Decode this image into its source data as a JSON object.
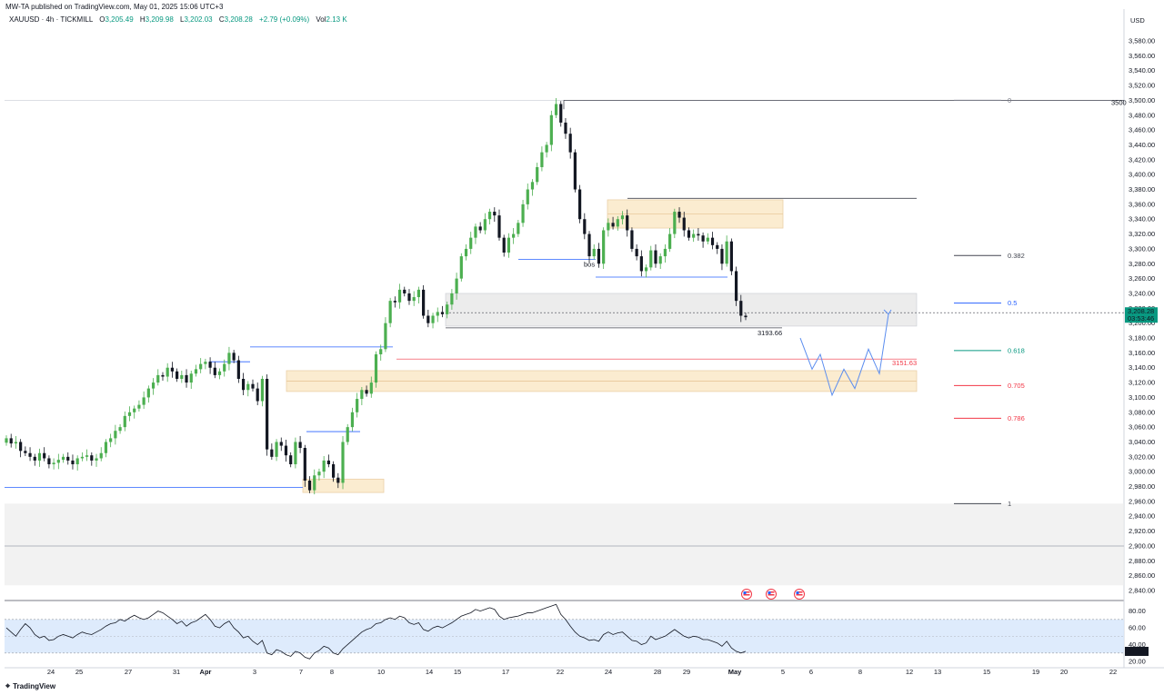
{
  "header": {
    "published": "MW-TA published on TradingView.com, May 01, 2025 15:06 UTC+3",
    "symbol": "XAUUSD · 4h · TICKMILL",
    "o_label": "O",
    "o_value": "3,205.49",
    "h_label": "H",
    "h_value": "3,209.98",
    "l_label": "L",
    "l_value": "3,202.03",
    "c_label": "C",
    "c_value": "3,208.28",
    "change": "+2.79 (+0.09%)",
    "vol_label": "Vol",
    "vol_value": "2.13 K"
  },
  "price_axis": {
    "currency": "USD",
    "current_price": "3,208.28",
    "countdown": "03:53:46",
    "edge_label": "3500"
  },
  "rsi_axis": {
    "ticks": [
      "80.00",
      "60.00",
      "40.00",
      "20.00"
    ],
    "current": "31.94"
  },
  "brand": {
    "name": "TradingView"
  },
  "colors": {
    "bull": "#4caf50",
    "bear": "#131722",
    "accent": "#2962ff",
    "zone": "#fbe9c8",
    "zone_border": "#e8c89a",
    "grey_zone": "#ececec",
    "price_tag": "#089981",
    "rsi_band": "#d6e6fb",
    "rsi_line": "#131722"
  },
  "annotations": {
    "bos": "bos",
    "low_label": "3193.66",
    "red_label": "3151.63",
    "projection": "bullish zigzag from ~3,210 down toward 3,105 then up"
  },
  "event_icons": [
    "us-flag-icon",
    "us-flag-icon",
    "us-flag-icon"
  ],
  "chart_data": {
    "type": "candlestick",
    "title": "XAUUSD · 4h · TICKMILL",
    "y_axis": {
      "ticks": [
        "3,580.00",
        "3,560.00",
        "3,540.00",
        "3,520.00",
        "3,500.00",
        "3,480.00",
        "3,460.00",
        "3,440.00",
        "3,420.00",
        "3,400.00",
        "3,380.00",
        "3,360.00",
        "3,340.00",
        "3,320.00",
        "3,300.00",
        "3,280.00",
        "3,260.00",
        "3,240.00",
        "3,220.00",
        "3,200.00",
        "3,180.00",
        "3,160.00",
        "3,140.00",
        "3,120.00",
        "3,100.00",
        "3,080.00",
        "3,060.00",
        "3,040.00",
        "3,020.00",
        "3,000.00",
        "2,980.00",
        "2,960.00",
        "2,940.00",
        "2,920.00",
        "2,900.00",
        "2,880.00",
        "2,860.00",
        "2,840.00"
      ],
      "range": [
        2840,
        3580
      ]
    },
    "x_axis": {
      "ticks": [
        "24",
        "25",
        "27",
        "31",
        "Apr",
        "3",
        "7",
        "8",
        "10",
        "14",
        "15",
        "17",
        "22",
        "24",
        "28",
        "29",
        "May",
        "5",
        "6",
        "8",
        "12",
        "13",
        "15",
        "19",
        "20",
        "22"
      ]
    },
    "closes": [
      3045,
      3038,
      3040,
      3028,
      3025,
      3020,
      3015,
      3025,
      3018,
      3010,
      3012,
      3016,
      3020,
      3015,
      3010,
      3018,
      3020,
      3022,
      3015,
      3018,
      3025,
      3040,
      3045,
      3055,
      3060,
      3075,
      3080,
      3085,
      3090,
      3100,
      3112,
      3120,
      3130,
      3128,
      3140,
      3135,
      3125,
      3130,
      3120,
      3132,
      3138,
      3145,
      3148,
      3140,
      3130,
      3135,
      3145,
      3160,
      3150,
      3125,
      3110,
      3118,
      3112,
      3095,
      3125,
      3030,
      3020,
      3040,
      3035,
      3022,
      3010,
      3040,
      3032,
      2988,
      2975,
      2995,
      3000,
      3015,
      3010,
      2992,
      2985,
      3040,
      3060,
      3080,
      3098,
      3110,
      3105,
      3120,
      3158,
      3165,
      3200,
      3230,
      3228,
      3245,
      3240,
      3230,
      3235,
      3245,
      3210,
      3200,
      3210,
      3215,
      3212,
      3225,
      3240,
      3260,
      3290,
      3300,
      3315,
      3330,
      3325,
      3340,
      3350,
      3345,
      3315,
      3295,
      3315,
      3320,
      3335,
      3360,
      3380,
      3390,
      3410,
      3430,
      3440,
      3480,
      3495,
      3470,
      3455,
      3430,
      3380,
      3340,
      3320,
      3290,
      3300,
      3280,
      3325,
      3335,
      3330,
      3340,
      3345,
      3325,
      3300,
      3290,
      3270,
      3275,
      3298,
      3280,
      3290,
      3300,
      3320,
      3350,
      3342,
      3325,
      3315,
      3320,
      3318,
      3310,
      3315,
      3305,
      3300,
      3280,
      3310,
      3270,
      3230,
      3210,
      3208
    ],
    "fib_levels": [
      {
        "label": "0",
        "value": 3500
      },
      {
        "label": "0.382",
        "value": 3291
      },
      {
        "label": "0.5",
        "value": 3227
      },
      {
        "label": "0.618",
        "value": 3163
      },
      {
        "label": "0.705",
        "value": 3116
      },
      {
        "label": "0.786",
        "value": 3072
      },
      {
        "label": "1",
        "value": 2957
      }
    ],
    "rsi": [
      60,
      55,
      50,
      58,
      65,
      60,
      52,
      48,
      50,
      45,
      46,
      50,
      52,
      50,
      48,
      52,
      55,
      53,
      52,
      55,
      58,
      62,
      65,
      66,
      70,
      68,
      72,
      75,
      72,
      70,
      72,
      76,
      80,
      78,
      74,
      70,
      65,
      68,
      62,
      66,
      68,
      72,
      76,
      70,
      62,
      60,
      65,
      68,
      60,
      55,
      48,
      50,
      44,
      40,
      45,
      30,
      28,
      34,
      32,
      28,
      26,
      32,
      30,
      25,
      23,
      30,
      33,
      38,
      36,
      30,
      28,
      35,
      40,
      45,
      50,
      55,
      58,
      60,
      65,
      66,
      70,
      72,
      70,
      74,
      72,
      66,
      64,
      66,
      58,
      56,
      60,
      62,
      60,
      63,
      66,
      70,
      74,
      76,
      78,
      82,
      80,
      82,
      84,
      82,
      74,
      70,
      72,
      73,
      74,
      76,
      78,
      78,
      80,
      82,
      84,
      86,
      88,
      76,
      70,
      62,
      55,
      50,
      48,
      45,
      46,
      44,
      52,
      55,
      52,
      54,
      55,
      50,
      45,
      44,
      40,
      42,
      50,
      46,
      48,
      50,
      54,
      58,
      54,
      50,
      48,
      50,
      49,
      46,
      46,
      44,
      42,
      38,
      44,
      36,
      32,
      30,
      32
    ],
    "rsi_range": [
      20,
      85
    ]
  }
}
